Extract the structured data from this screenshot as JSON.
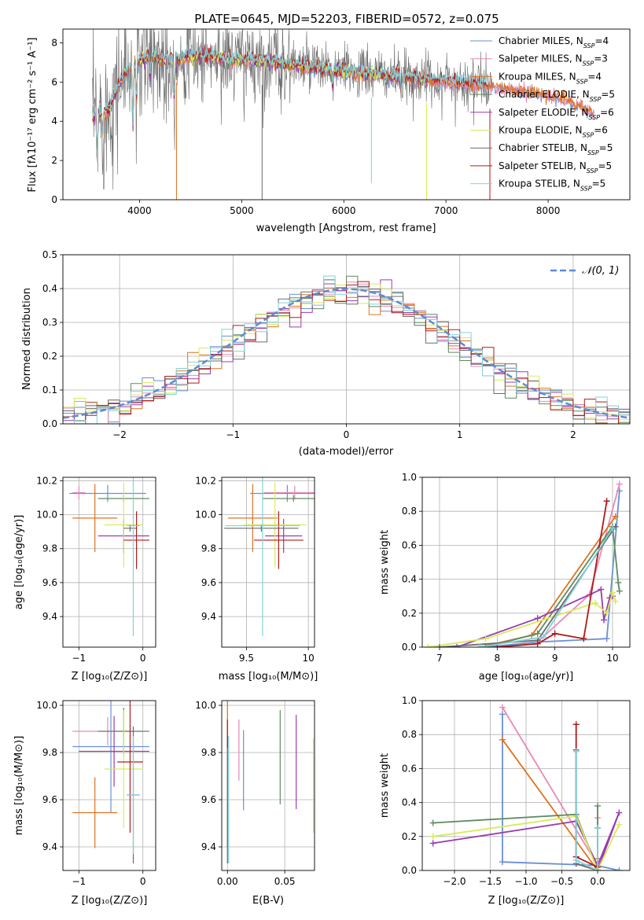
{
  "figure_title": "PLATE=0645, MJD=52203, FIBERID=0572, z=0.075",
  "colors": {
    "Chabrier MILES": "#6a8fd6",
    "Salpeter MILES": "#e989b6",
    "Kroupa MILES": "#e0731e",
    "Chabrier ELODIE": "#5f8a5f",
    "Salpeter ELODIE": "#9a3bb0",
    "Kroupa ELODIE": "#d7ea5a",
    "Chabrier STELIB": "#6b6b6b",
    "Salpeter STELIB": "#b01a1a",
    "Kroupa STELIB": "#7fd3dc",
    "normal_curve": "#5b8bd6",
    "grid": "#b0b0b0"
  },
  "chart_data": [
    {
      "id": "spectrum",
      "type": "line",
      "title": "PLATE=0645, MJD=52203, FIBERID=0572, z=0.075",
      "xlabel": "wavelength [Angstrom, rest frame]",
      "ylabel": "Flux [fλ10⁻¹⁷ erg cm⁻² s⁻¹ A⁻¹]",
      "xlim": [
        3250,
        8800
      ],
      "ylim": [
        0,
        8.7
      ],
      "xticks": [
        4000,
        5000,
        6000,
        7000,
        8000
      ],
      "yticks": [
        0,
        2,
        4,
        6,
        8
      ],
      "grid": false,
      "legend": "upper right",
      "legend_entries": [
        {
          "label": "Chabrier MILES, N",
          "sub": "SSP",
          "suffix": "=4",
          "series": "Chabrier MILES"
        },
        {
          "label": "Salpeter MILES, N",
          "sub": "SSP",
          "suffix": "=3",
          "series": "Salpeter MILES"
        },
        {
          "label": "Kroupa MILES, N",
          "sub": "SSP",
          "suffix": "=4",
          "series": "Kroupa MILES"
        },
        {
          "label": "Chabrier ELODIE, N",
          "sub": "SSP",
          "suffix": "=5",
          "series": "Chabrier ELODIE"
        },
        {
          "label": "Salpeter ELODIE, N",
          "sub": "SSP",
          "suffix": "=6",
          "series": "Salpeter ELODIE"
        },
        {
          "label": "Kroupa ELODIE, N",
          "sub": "SSP",
          "suffix": "=6",
          "series": "Kroupa ELODIE"
        },
        {
          "label": "Chabrier STELIB, N",
          "sub": "SSP",
          "suffix": "=5",
          "series": "Chabrier STELIB"
        },
        {
          "label": "Salpeter STELIB, N",
          "sub": "SSP",
          "suffix": "=5",
          "series": "Salpeter STELIB"
        },
        {
          "label": "Kroupa STELIB, N",
          "sub": "SSP",
          "suffix": "=5",
          "series": "Kroupa STELIB"
        }
      ],
      "continuum": {
        "x": [
          3550,
          3650,
          3700,
          3750,
          3800,
          3850,
          3900,
          4000,
          4100,
          4200,
          4300,
          4500,
          4700,
          4900,
          5100,
          5300,
          5500,
          5700,
          5900,
          6100,
          6300,
          6500,
          6700,
          6900,
          7100,
          7300,
          7500,
          7700,
          7900,
          8100,
          8200,
          8300,
          8400,
          8500
        ],
        "y": [
          4.3,
          4.5,
          4.6,
          5.3,
          5.9,
          6.3,
          6.8,
          7.1,
          7.3,
          7.2,
          7.1,
          7.35,
          7.3,
          7.15,
          7.1,
          7.0,
          6.9,
          6.75,
          6.6,
          6.5,
          6.4,
          6.3,
          6.2,
          6.1,
          6.0,
          5.9,
          5.8,
          5.65,
          5.5,
          5.3,
          5.1,
          4.9,
          4.6,
          4.2
        ]
      },
      "absorption_features": [
        {
          "x": 3585,
          "depth": 2.4
        },
        {
          "x": 3640,
          "depth": 1.2
        },
        {
          "x": 3890,
          "depth": 0.9
        },
        {
          "x": 3935,
          "depth": 3.2
        },
        {
          "x": 3970,
          "depth": 2.0
        },
        {
          "x": 4102,
          "depth": 1.0
        },
        {
          "x": 4340,
          "depth": 2.0
        },
        {
          "x": 5890,
          "depth": 0.8
        },
        {
          "x": 6563,
          "depth": 0.9
        }
      ],
      "spectrum_noise_sigma": 1.1,
      "observed_gaps": [
        {
          "x": 4362,
          "series": "Kroupa MILES",
          "y_low": 0
        },
        {
          "x": 5200,
          "series": "Chabrier STELIB",
          "y_low": 0
        },
        {
          "x": 6270,
          "series": "Kroupa STELIB",
          "y_low": 0.85
        },
        {
          "x": 6810,
          "series": "Kroupa ELODIE",
          "y_low": 0
        },
        {
          "x": 7430,
          "series": "Salpeter STELIB",
          "y_low": 0
        }
      ]
    },
    {
      "id": "residuals",
      "type": "histogram",
      "xlabel": "(data-model)/error",
      "ylabel": "Normed distribution",
      "xlim": [
        -2.5,
        2.5
      ],
      "ylim": [
        0,
        0.5
      ],
      "xticks": [
        -2,
        -1,
        0,
        1,
        2
      ],
      "yticks": [
        0.0,
        0.1,
        0.2,
        0.3,
        0.4,
        0.5
      ],
      "grid": true,
      "legend": "upper right",
      "legend_label": "𝒩(0, 1)",
      "bins": {
        "start": -2.6,
        "width": 0.1,
        "count": 52
      },
      "normal": {
        "mean": 0,
        "sigma": 1
      }
    },
    {
      "id": "age_vs_Z",
      "type": "errorbar",
      "xlabel": "Z [log₁₀(Z/Z⊙)]",
      "ylabel": "age  [log₁₀(age/yr)]",
      "xlim": [
        -1.25,
        0.2
      ],
      "ylim": [
        9.22,
        10.22
      ],
      "xticks": [
        -1,
        0
      ],
      "yticks": [
        9.4,
        9.6,
        9.8,
        10.0,
        10.2
      ],
      "grid": true,
      "points": [
        {
          "series": "Chabrier MILES",
          "x": -0.55,
          "xerr": 0.6,
          "y": 10.125,
          "yerr": 0.05
        },
        {
          "series": "Salpeter MILES",
          "x": -1.0,
          "xerr": 0.1,
          "y": 10.13,
          "yerr": 0.04
        },
        {
          "series": "Kroupa MILES",
          "x": -0.75,
          "xerr": 0.35,
          "y": 9.98,
          "yerr": 0.2
        },
        {
          "series": "Chabrier ELODIE",
          "x": -0.3,
          "xerr": 0.4,
          "y": 10.095,
          "yerr": 0.02
        },
        {
          "series": "Salpeter ELODIE",
          "x": -0.3,
          "xerr": 0.4,
          "y": 9.875,
          "yerr": 0.1
        },
        {
          "series": "Kroupa ELODIE",
          "x": -0.3,
          "xerr": 0.3,
          "y": 9.94,
          "yerr": 0.25
        },
        {
          "series": "Chabrier STELIB",
          "x": -0.2,
          "xerr": 0.1,
          "y": 9.92,
          "yerr": 0.02
        },
        {
          "series": "Salpeter STELIB",
          "x": -0.1,
          "xerr": 0.2,
          "y": 9.85,
          "yerr": 0.17
        },
        {
          "series": "Kroupa STELIB",
          "x": -0.15,
          "xerr": 0.1,
          "y": 9.935,
          "yerr": 0.65
        }
      ]
    },
    {
      "id": "age_vs_mass",
      "type": "errorbar",
      "xlabel": "mass [log₁₀(M/M⊙)]",
      "ylabel": "",
      "xlim": [
        9.3,
        10.05
      ],
      "ylim": [
        9.22,
        10.22
      ],
      "xticks": [
        9.5,
        10.0
      ],
      "yticks": [
        9.4,
        9.6,
        9.8,
        10.0,
        10.2
      ],
      "grid": true,
      "points": [
        {
          "series": "Chabrier MILES",
          "x": 9.83,
          "xerr": 0.3,
          "y": 10.125,
          "yerr": 0.05
        },
        {
          "series": "Salpeter MILES",
          "x": 9.89,
          "xerr": 0.25,
          "y": 10.13,
          "yerr": 0.04
        },
        {
          "series": "Kroupa MILES",
          "x": 9.55,
          "xerr": 0.2,
          "y": 9.98,
          "yerr": 0.2
        },
        {
          "series": "Chabrier ELODIE",
          "x": 9.88,
          "xerr": 0.25,
          "y": 10.095,
          "yerr": 0.02
        },
        {
          "series": "Salpeter ELODIE",
          "x": 9.8,
          "xerr": 0.15,
          "y": 9.875,
          "yerr": 0.1
        },
        {
          "series": "Kroupa ELODIE",
          "x": 9.73,
          "xerr": 0.25,
          "y": 9.94,
          "yerr": 0.25
        },
        {
          "series": "Chabrier STELIB",
          "x": 9.62,
          "xerr": 0.3,
          "y": 9.92,
          "yerr": 0.02
        },
        {
          "series": "Salpeter STELIB",
          "x": 9.76,
          "xerr": 0.2,
          "y": 9.85,
          "yerr": 0.17
        },
        {
          "series": "Kroupa STELIB",
          "x": 9.63,
          "xerr": 0.3,
          "y": 9.935,
          "yerr": 0.65
        }
      ]
    },
    {
      "id": "weight_vs_age",
      "type": "line",
      "xlabel": "age  [log₁₀(age/yr)]",
      "ylabel": "mass weight",
      "xlim": [
        6.7,
        10.3
      ],
      "ylim": [
        0,
        1.0
      ],
      "xticks": [
        7,
        8,
        9,
        10
      ],
      "yticks": [
        0.0,
        0.2,
        0.4,
        0.6,
        0.8,
        1.0
      ],
      "grid": true,
      "series": [
        {
          "name": "Chabrier MILES",
          "x": [
            7.8,
            8.7,
            9.9,
            10.12
          ],
          "y": [
            0.0,
            0.03,
            0.05,
            0.92
          ]
        },
        {
          "name": "Salpeter MILES",
          "x": [
            8.7,
            9.6,
            10.12
          ],
          "y": [
            0.03,
            0.31,
            0.96
          ]
        },
        {
          "name": "Kroupa MILES",
          "x": [
            7.7,
            8.6,
            10.05
          ],
          "y": [
            0.0,
            0.07,
            0.77
          ]
        },
        {
          "name": "Chabrier ELODIE",
          "x": [
            7.8,
            8.7,
            10.0,
            10.1,
            10.12
          ],
          "y": [
            0.0,
            0.08,
            0.71,
            0.38,
            0.33
          ]
        },
        {
          "name": "Salpeter ELODIE",
          "x": [
            7.3,
            8.7,
            9.8,
            9.85,
            9.95,
            10.0
          ],
          "y": [
            0.0,
            0.17,
            0.34,
            0.16,
            0.29,
            0.3
          ]
        },
        {
          "name": "Kroupa ELODIE",
          "x": [
            6.8,
            7.8,
            9.7,
            9.9,
            10.0,
            10.05
          ],
          "y": [
            0.0,
            0.05,
            0.26,
            0.2,
            0.32,
            0.27
          ]
        },
        {
          "name": "Chabrier STELIB",
          "x": [
            7.0,
            8.7,
            10.05
          ],
          "y": [
            0.0,
            0.04,
            0.71
          ]
        },
        {
          "name": "Salpeter STELIB",
          "x": [
            8.0,
            8.7,
            9.0,
            9.5,
            9.9
          ],
          "y": [
            0.0,
            0.02,
            0.08,
            0.05,
            0.86
          ]
        },
        {
          "name": "Kroupa STELIB",
          "x": [
            7.7,
            8.8,
            10.0
          ],
          "y": [
            0.0,
            0.06,
            0.7
          ]
        }
      ]
    },
    {
      "id": "mass_vs_Z",
      "type": "errorbar",
      "xlabel": "Z [log₁₀(Z/Z⊙)]",
      "ylabel": "mass [log₁₀(M/M⊙)]",
      "xlim": [
        -1.25,
        0.2
      ],
      "ylim": [
        9.3,
        10.02
      ],
      "xticks": [
        -1,
        0
      ],
      "yticks": [
        9.4,
        9.6,
        9.8,
        10.0
      ],
      "grid": true,
      "points": [
        {
          "series": "Chabrier MILES",
          "x": -0.5,
          "xerr": 0.6,
          "y": 9.825,
          "yerr": 0.28
        },
        {
          "series": "Salpeter MILES",
          "x": -0.55,
          "xerr": 0.55,
          "y": 9.89,
          "yerr": 0.06
        },
        {
          "series": "Kroupa MILES",
          "x": -0.75,
          "xerr": 0.35,
          "y": 9.545,
          "yerr": 0.15
        },
        {
          "series": "Chabrier ELODIE",
          "x": -0.3,
          "xerr": 0.4,
          "y": 9.89,
          "yerr": 0.1
        },
        {
          "series": "Salpeter ELODIE",
          "x": -0.45,
          "xerr": 0.55,
          "y": 9.805,
          "yerr": 0.15
        },
        {
          "series": "Kroupa ELODIE",
          "x": -0.3,
          "xerr": 0.3,
          "y": 9.73,
          "yerr": 0.25
        },
        {
          "series": "Chabrier STELIB",
          "x": -0.15,
          "xerr": 0.1,
          "y": 9.62,
          "yerr": 0.29
        },
        {
          "series": "Salpeter STELIB",
          "x": -0.2,
          "xerr": 0.2,
          "y": 9.76,
          "yerr": 0.3
        },
        {
          "series": "Kroupa STELIB",
          "x": -0.15,
          "xerr": 0.1,
          "y": 9.62,
          "yerr": 0.25
        }
      ]
    },
    {
      "id": "mass_vs_ebv",
      "type": "errorbar",
      "xlabel": "E(B-V)",
      "ylabel": "",
      "xlim": [
        -0.005,
        0.076
      ],
      "ylim": [
        9.3,
        10.02
      ],
      "xticks": [
        0.0,
        0.05
      ],
      "xtick_labels": [
        "0.00",
        "0.05"
      ],
      "yticks": [
        9.4,
        9.6,
        9.8,
        10.0
      ],
      "grid": true,
      "points": [
        {
          "series": "Chabrier MILES",
          "x": 0.014,
          "y": 9.725,
          "yerr": 0.17
        },
        {
          "series": "Salpeter MILES",
          "x": 0.01,
          "y": 9.81,
          "yerr": 0.13
        },
        {
          "series": "Kroupa MILES",
          "x": 0.0,
          "y": 9.75,
          "yerr": 0.35
        },
        {
          "series": "Chabrier ELODIE",
          "x": 0.046,
          "y": 9.78,
          "yerr": 0.2
        },
        {
          "series": "Salpeter ELODIE",
          "x": 0.06,
          "y": 9.76,
          "yerr": 0.2
        },
        {
          "series": "Kroupa ELODIE",
          "x": 0.075,
          "y": 9.66,
          "yerr": 0.2
        },
        {
          "series": "Chabrier STELIB",
          "x": 0.0,
          "y": 9.6,
          "yerr": 0.27
        },
        {
          "series": "Salpeter STELIB",
          "x": 0.0,
          "y": 9.88,
          "yerr": 0.06
        },
        {
          "series": "Kroupa STELIB",
          "x": 0.001,
          "y": 9.6,
          "yerr": 0.27
        }
      ]
    },
    {
      "id": "weight_vs_Z",
      "type": "line",
      "xlabel": "Z [log₁₀(Z/Z⊙)]",
      "ylabel": "mass weight",
      "xlim": [
        -2.45,
        0.45
      ],
      "ylim": [
        0,
        1.0
      ],
      "xticks": [
        -2.0,
        -1.5,
        -1.0,
        -0.5,
        0.0
      ],
      "xtick_labels": [
        "−2.0",
        "−1.5",
        "−1.0",
        "−0.5",
        "0.0"
      ],
      "yticks": [
        0.0,
        0.2,
        0.4,
        0.6,
        0.8,
        1.0
      ],
      "grid": true,
      "series": [
        {
          "name": "Chabrier MILES",
          "x": [
            -1.33,
            -1.33,
            -0.02,
            0.3
          ],
          "y": [
            0.92,
            0.05,
            0.03,
            0.0
          ]
        },
        {
          "name": "Salpeter MILES",
          "x": [
            -1.33,
            0.0,
            0.0
          ],
          "y": [
            0.96,
            0.03,
            0.31
          ]
        },
        {
          "name": "Kroupa MILES",
          "x": [
            -1.33,
            0.0,
            0.0
          ],
          "y": [
            0.77,
            0.0,
            0.07
          ]
        },
        {
          "name": "Chabrier ELODIE",
          "x": [
            -2.3,
            -0.3,
            0.0,
            0.0
          ],
          "y": [
            0.28,
            0.33,
            0.0,
            0.38
          ]
        },
        {
          "name": "Salpeter ELODIE",
          "x": [
            -2.3,
            -0.3,
            0.0,
            0.3,
            0.0
          ],
          "y": [
            0.16,
            0.29,
            0.03,
            0.34,
            0.0
          ]
        },
        {
          "name": "Kroupa ELODIE",
          "x": [
            -2.3,
            -0.3,
            0.0,
            0.3
          ],
          "y": [
            0.2,
            0.32,
            0.0,
            0.27
          ]
        },
        {
          "name": "Chabrier STELIB",
          "x": [
            -0.3,
            -0.3,
            0.0,
            0.0
          ],
          "y": [
            0.71,
            0.04,
            0.0,
            0.25
          ]
        },
        {
          "name": "Salpeter STELIB",
          "x": [
            -0.3,
            -0.3,
            0.0
          ],
          "y": [
            0.86,
            0.08,
            0.02
          ]
        },
        {
          "name": "Kroupa STELIB",
          "x": [
            -0.3,
            -0.3,
            0.0,
            0.0
          ],
          "y": [
            0.7,
            0.06,
            0.0,
            0.25
          ]
        }
      ]
    }
  ]
}
